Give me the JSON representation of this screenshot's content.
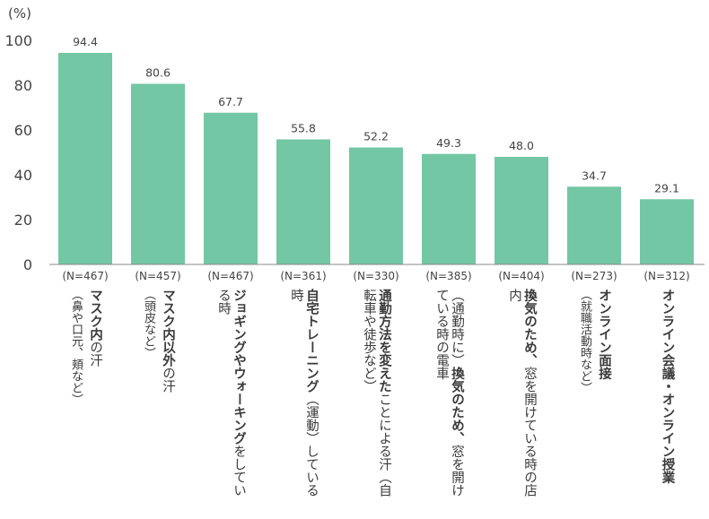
{
  "chart_data": {
    "type": "bar",
    "unit_label": "(%)",
    "ylim": [
      0,
      100
    ],
    "yticks": [
      0,
      20,
      40,
      60,
      80,
      100
    ],
    "bar_color": "#73c7a4",
    "categories": [
      {
        "n": "(N=467)",
        "bold": "マスク内",
        "normal": "の汗",
        "note": "（鼻や口元、頬など）"
      },
      {
        "n": "(N=457)",
        "bold": "マスク内以外",
        "normal": "の汗",
        "note": "（頭皮など）"
      },
      {
        "n": "(N=467)",
        "bold": "ジョギングやウォーキング",
        "normal": "をしている時",
        "note": ""
      },
      {
        "n": "(N=361)",
        "bold": "自宅トレーニング",
        "normal": "（運動）している時",
        "note": ""
      },
      {
        "n": "(N=330)",
        "bold": "通勤方法を変えた",
        "normal": "ことによる汗（自転車や徒歩など）",
        "note": ""
      },
      {
        "n": "(N=385)",
        "bold": "換気のため、",
        "normal": "窓を開けている時の電車",
        "pre": "（通勤時に）",
        "note": ""
      },
      {
        "n": "(N=404)",
        "bold": "換気のため、",
        "normal": "窓を開けている時の店内",
        "note": ""
      },
      {
        "n": "(N=273)",
        "bold": "オンライン面接",
        "normal": "",
        "note": "（就職活動時など）"
      },
      {
        "n": "(N=312)",
        "bold": "オンライン会議・オンライン授業",
        "normal": "",
        "note": ""
      }
    ],
    "values": [
      94.4,
      80.6,
      67.7,
      55.8,
      52.2,
      49.3,
      48.0,
      34.7,
      29.1
    ],
    "value_labels": [
      "94.4",
      "80.6",
      "67.7",
      "55.8",
      "52.2",
      "49.3",
      "48.0",
      "34.7",
      "29.1"
    ]
  }
}
